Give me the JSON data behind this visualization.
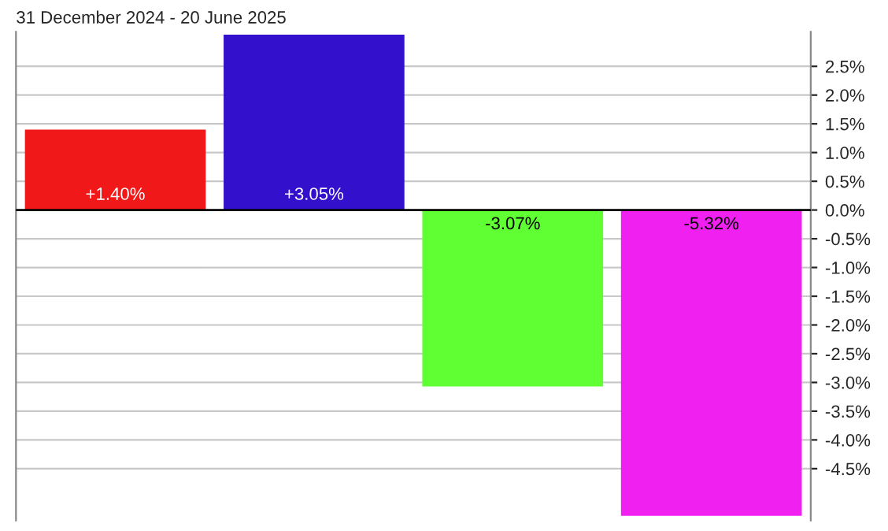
{
  "chart_data": {
    "type": "bar",
    "title": "31 December 2024 - 20 June 2025",
    "categories": [
      null,
      null,
      null,
      null
    ],
    "values": [
      1.4,
      3.05,
      -3.07,
      -5.32
    ],
    "colors": [
      "#f01818",
      "#3311cc",
      "#5fff33",
      "#f020f0"
    ],
    "value_labels": [
      "+1.40%",
      "+3.05%",
      "-3.07%",
      "-5.32%"
    ],
    "ylim": [
      -5.4,
      3.1
    ],
    "yticks": [
      {
        "value": 2.5,
        "label": "2.5%"
      },
      {
        "value": 2.0,
        "label": "2.0%"
      },
      {
        "value": 1.5,
        "label": "1.5%"
      },
      {
        "value": 1.0,
        "label": "1.0%"
      },
      {
        "value": 0.5,
        "label": "0.5%"
      },
      {
        "value": 0.0,
        "label": "0.0%"
      },
      {
        "value": -0.5,
        "label": "-0.5%"
      },
      {
        "value": -1.0,
        "label": "-1.0%"
      },
      {
        "value": -1.5,
        "label": "-1.5%"
      },
      {
        "value": -2.0,
        "label": "-2.0%"
      },
      {
        "value": -2.5,
        "label": "-2.5%"
      },
      {
        "value": -3.0,
        "label": "-3.0%"
      },
      {
        "value": -3.5,
        "label": "-3.5%"
      },
      {
        "value": -4.0,
        "label": "-4.0%"
      },
      {
        "value": -4.5,
        "label": "-4.5%"
      }
    ],
    "grid": "y",
    "tick_labels": "y"
  }
}
